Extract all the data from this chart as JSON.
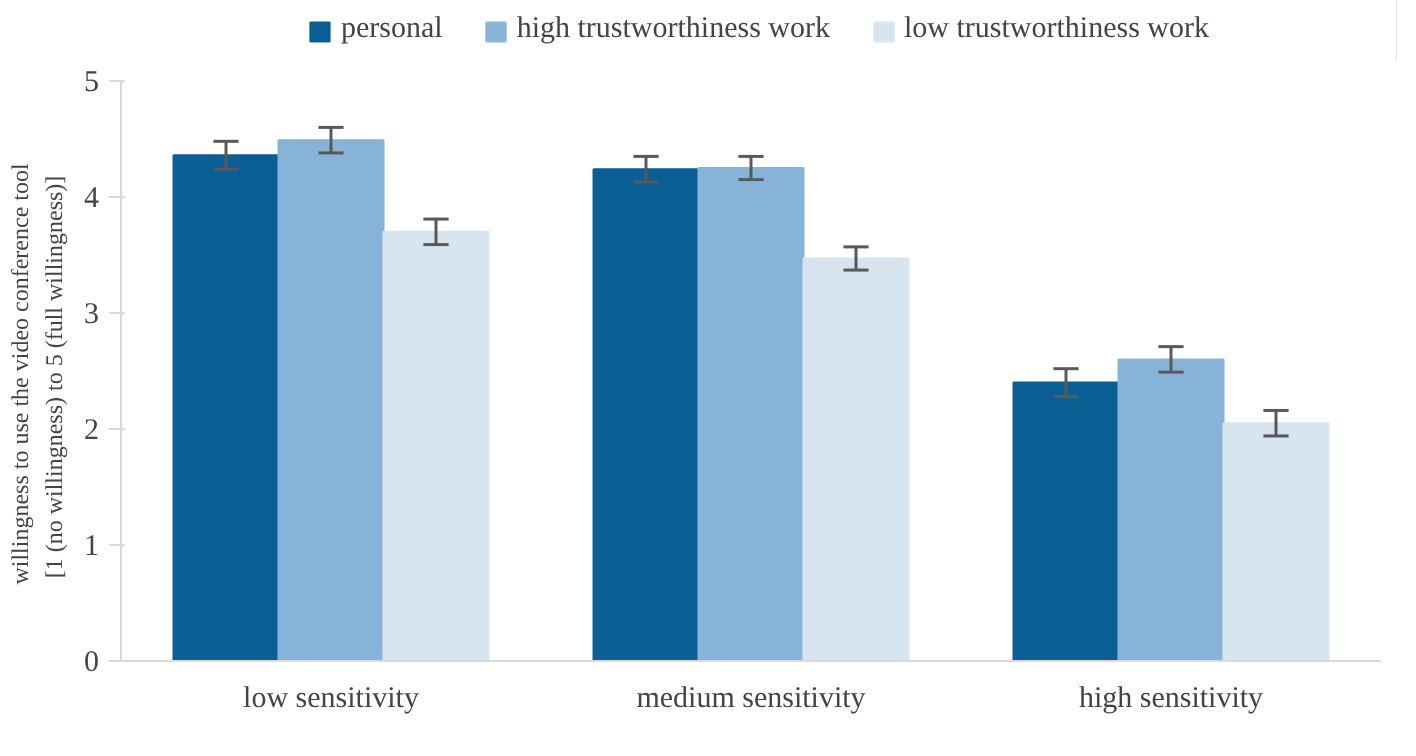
{
  "chart_data": {
    "type": "bar",
    "ylabel": "willingness  to use the video conference tool\n[1 (no willingness)   to 5 (full willingness)]",
    "categories": [
      "low sensitivity",
      "medium sensitivity",
      "high sensitivity"
    ],
    "series": [
      {
        "name": "personal",
        "color": "#0a5f94",
        "values": [
          4.36,
          4.24,
          2.4
        ],
        "errors": [
          0.12,
          0.11,
          0.12
        ]
      },
      {
        "name": "high trustworthiness work",
        "color": "#88b3d9",
        "values": [
          4.49,
          4.25,
          2.6
        ],
        "errors": [
          0.11,
          0.1,
          0.11
        ]
      },
      {
        "name": "low trustworthiness work",
        "color": "#d7e5f1",
        "values": [
          3.7,
          3.47,
          2.05
        ],
        "errors": [
          0.11,
          0.1,
          0.11
        ]
      }
    ],
    "ylim": [
      0,
      5
    ],
    "yticks": [
      0,
      1,
      2,
      3,
      4,
      5
    ],
    "grid": false,
    "legend": "top"
  }
}
